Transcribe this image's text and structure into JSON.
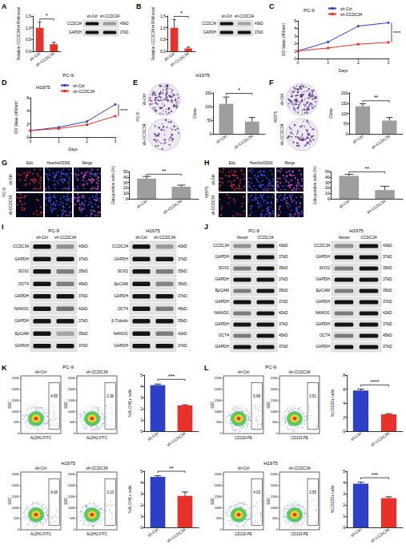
{
  "chart_data": [
    {
      "type": "bar",
      "ylabel": "Relative CCDC34 mRNA level",
      "categories": [
        "sh-Ctrl",
        "sh-CCDC34"
      ],
      "values": [
        1.0,
        0.3
      ],
      "errors": [
        0.25,
        0.08
      ],
      "colors": [
        "#e8312a",
        "#e8312a"
      ],
      "ylim": [
        0,
        1.5
      ],
      "yticks": [
        {
          "value": 0,
          "label": "0.0"
        },
        {
          "value": 0.5,
          "label": "0.5"
        },
        {
          "value": 1,
          "label": "1.0"
        },
        {
          "value": 1.5,
          "label": "1.5"
        }
      ],
      "annotation": "*"
    },
    {
      "type": "bar",
      "ylabel": "Relative CCDC34 mRNA level",
      "categories": [
        "sh-Ctrl",
        "sh-CCDC34"
      ],
      "values": [
        1.0,
        0.12
      ],
      "errors": [
        0.35,
        0.06
      ],
      "colors": [
        "#e8312a",
        "#e8312a"
      ],
      "ylim": [
        0,
        1.5
      ],
      "yticks": [
        {
          "value": 0,
          "label": "0.0"
        },
        {
          "value": 0.5,
          "label": "0.5"
        },
        {
          "value": 1,
          "label": "1.0"
        },
        {
          "value": 1.5,
          "label": "1.5"
        }
      ],
      "annotation": "*"
    },
    {
      "type": "line",
      "title": "PC-9",
      "xlabel": "Days",
      "ylabel": "OD Value (450nm)",
      "x": [
        0,
        1,
        2,
        3
      ],
      "series": [
        {
          "name": "sh-Ctrl",
          "color": "#2b3fc7",
          "marker": "circle",
          "values": [
            1.0,
            2.2,
            4.3,
            4.75
          ]
        },
        {
          "name": "sh-CCDC34",
          "color": "#e8312a",
          "marker": "square",
          "values": [
            1.0,
            1.4,
            1.9,
            2.15
          ]
        }
      ],
      "xlim": [
        0,
        3
      ],
      "xticks": [
        0,
        1,
        2,
        3
      ],
      "ylim": [
        0,
        5
      ],
      "yticks": [
        0,
        1,
        2,
        3,
        4,
        5
      ],
      "legend": "upper left",
      "annotation": "****"
    },
    {
      "type": "line",
      "title": "H1975",
      "xlabel": "Days",
      "ylabel": "OD Value (450nm)",
      "x": [
        0,
        1,
        2,
        3
      ],
      "series": [
        {
          "name": "sh-Ctrl",
          "color": "#2b3fc7",
          "marker": "circle",
          "values": [
            1.0,
            1.5,
            2.4,
            5.0
          ]
        },
        {
          "name": "sh-CCDC34",
          "color": "#e8312a",
          "marker": "square",
          "values": [
            1.0,
            1.3,
            1.9,
            3.2
          ]
        }
      ],
      "xlim": [
        0,
        3
      ],
      "xticks": [
        0,
        1,
        2,
        3
      ],
      "ylim": [
        0,
        6
      ],
      "yticks": [
        0,
        2,
        4,
        6
      ],
      "legend": "upper left",
      "annotation": "****"
    },
    {
      "type": "bar",
      "ylabel": "Clone",
      "categories": [
        "sh-Ctrl",
        "sh-CCDC34"
      ],
      "values": [
        110,
        45
      ],
      "errors": [
        25,
        15
      ],
      "colors": [
        "#9e9e9e",
        "#9e9e9e"
      ],
      "ylim": [
        0,
        150
      ],
      "yticks": [
        0,
        50,
        100,
        150
      ],
      "annotation": "*"
    },
    {
      "type": "bar",
      "ylabel": "Clone",
      "categories": [
        "sh-Ctrl",
        "sh-CCDC34"
      ],
      "values": [
        135,
        65
      ],
      "errors": [
        12,
        15
      ],
      "colors": [
        "#9e9e9e",
        "#9e9e9e"
      ],
      "ylim": [
        0,
        200
      ],
      "yticks": [
        0,
        50,
        100,
        150,
        200
      ],
      "annotation": "**"
    },
    {
      "type": "bar",
      "ylabel": "Edu-positive cells (%)",
      "categories": [
        "sh-Ctrl",
        "sh-CCDC34"
      ],
      "values": [
        37,
        22
      ],
      "errors": [
        4,
        3
      ],
      "colors": [
        "#9e9e9e",
        "#9e9e9e"
      ],
      "ylim": [
        0,
        50
      ],
      "yticks": [
        0,
        10,
        20,
        30,
        40,
        50
      ],
      "annotation": "**"
    },
    {
      "type": "bar",
      "ylabel": "Edu-positive cells (%)",
      "categories": [
        "sh-Ctrl",
        "sh-CCDC34"
      ],
      "values": [
        42,
        16
      ],
      "errors": [
        3,
        7
      ],
      "colors": [
        "#9e9e9e",
        "#9e9e9e"
      ],
      "ylim": [
        0,
        50
      ],
      "yticks": [
        0,
        10,
        20,
        30,
        40,
        50
      ],
      "annotation": "**"
    },
    {
      "type": "bar",
      "ylabel": "%ALDH1+ cells",
      "categories": [
        "sh-Ctrl",
        "sh-CCDC34"
      ],
      "values": [
        4.1,
        2.3
      ],
      "errors": [
        0.1,
        0.05
      ],
      "colors": [
        "#2b3fc7",
        "#e8312a"
      ],
      "ylim": [
        0,
        5
      ],
      "yticks": [
        0,
        1,
        2,
        3,
        4,
        5
      ],
      "annotation": "***"
    },
    {
      "type": "bar",
      "ylabel": "%ALDH1+ cells",
      "categories": [
        "sh-Ctrl",
        "sh-CCDC34"
      ],
      "values": [
        4.5,
        2.8
      ],
      "errors": [
        0.1,
        0.35
      ],
      "colors": [
        "#2b3fc7",
        "#e8312a"
      ],
      "ylim": [
        0,
        5
      ],
      "yticks": [
        0,
        1,
        2,
        3,
        4,
        5
      ],
      "annotation": "**"
    },
    {
      "type": "bar",
      "ylabel": "%CD133+ cells",
      "categories": [
        "sh-Ctrl",
        "sh-CCDC34"
      ],
      "values": [
        5.8,
        2.4
      ],
      "errors": [
        0.2,
        0.1
      ],
      "colors": [
        "#2b3fc7",
        "#e8312a"
      ],
      "ylim": [
        0,
        8
      ],
      "yticks": [
        0,
        2,
        4,
        6,
        8
      ],
      "annotation": "****"
    },
    {
      "type": "bar",
      "ylabel": "%CD133+ cells",
      "categories": [
        "sh-Ctrl",
        "sh-CCDC34"
      ],
      "values": [
        3.9,
        2.6
      ],
      "errors": [
        0.12,
        0.12
      ],
      "colors": [
        "#2b3fc7",
        "#e8312a"
      ],
      "ylim": [
        0,
        5
      ],
      "yticks": [
        0,
        1,
        2,
        3,
        4,
        5
      ],
      "annotation": "***"
    }
  ],
  "figure": {
    "letters": [
      "A",
      "B",
      "C",
      "D",
      "E",
      "F",
      "G",
      "H",
      "I",
      "J",
      "K",
      "L"
    ],
    "blots": [
      {
        "cell_line": "PC-9",
        "columns": [
          "sh-Ctrl",
          "sh-CCDC34"
        ],
        "rows": [
          {
            "protein": "CCDC34",
            "kd": "43kD",
            "bands": [
              1,
              0.35
            ]
          },
          {
            "protein": "GAPDH",
            "kd": "37kD",
            "bands": [
              1,
              1
            ]
          }
        ]
      },
      {
        "cell_line": "H1975",
        "columns": [
          "sh-Ctrl",
          "sh-CCDC34"
        ],
        "rows": [
          {
            "protein": "CCDC34",
            "kd": "43kD",
            "bands": [
              1,
              0.3
            ]
          },
          {
            "protein": "GAPDH",
            "kd": "37kD",
            "bands": [
              1,
              1
            ]
          }
        ]
      },
      {
        "cell_line": "PC-9",
        "columns": [
          "sh-Ctrl",
          "sh-CCDC34"
        ],
        "rows": [
          {
            "protein": "CCDC34",
            "kd": "43kD",
            "bands": [
              1,
              0.4
            ]
          },
          {
            "protein": "GAPDH",
            "kd": "37kD",
            "bands": [
              1,
              1
            ]
          },
          {
            "protein": "SOX2",
            "kd": "35kD",
            "bands": [
              1,
              0.5
            ]
          },
          {
            "protein": "OCT4",
            "kd": "45kD",
            "bands": [
              1,
              0.5
            ]
          },
          {
            "protein": "GAPDH",
            "kd": "37kD",
            "bands": [
              1,
              1
            ]
          },
          {
            "protein": "NANOG",
            "kd": "42kD",
            "bands": [
              1,
              0.55
            ]
          },
          {
            "protein": "GAPDH",
            "kd": "37kD",
            "bands": [
              1,
              1
            ]
          },
          {
            "protein": "EpCAM",
            "kd": "35kD",
            "bands": [
              1,
              0.3
            ]
          },
          {
            "protein": "GAPDH",
            "kd": "37kD",
            "bands": [
              1,
              1
            ]
          }
        ]
      },
      {
        "cell_line": "H1975",
        "columns": [
          "sh-Ctrl",
          "sh-CCDC34"
        ],
        "rows": [
          {
            "protein": "CCDC34",
            "kd": "43kD",
            "bands": [
              1,
              0.35
            ]
          },
          {
            "protein": "GAPDH",
            "kd": "37kD",
            "bands": [
              1,
              1
            ]
          },
          {
            "protein": "SOX2",
            "kd": "35kD",
            "bands": [
              1,
              0.5
            ]
          },
          {
            "protein": "EpCAM",
            "kd": "35kD",
            "bands": [
              1,
              0.45
            ]
          },
          {
            "protein": "GAPDH",
            "kd": "37kD",
            "bands": [
              1,
              1
            ]
          },
          {
            "protein": "OCT4",
            "kd": "45kD",
            "bands": [
              1,
              0.5
            ]
          },
          {
            "protein": "β-Tubulin",
            "kd": "55kD",
            "bands": [
              1,
              1
            ]
          },
          {
            "protein": "NANOG",
            "kd": "42kD",
            "bands": [
              1,
              0.5
            ]
          },
          {
            "protein": "GAPDH",
            "kd": "37kD",
            "bands": [
              1,
              1
            ]
          }
        ]
      },
      {
        "cell_line": "PC-9",
        "columns": [
          "Vector",
          "CCDC34"
        ],
        "rows": [
          {
            "protein": "CCDC34",
            "kd": "43kD",
            "bands": [
              0.4,
              1
            ]
          },
          {
            "protein": "GAPDH",
            "kd": "37kD",
            "bands": [
              1,
              1
            ]
          },
          {
            "protein": "SOX2",
            "kd": "35kD",
            "bands": [
              0.5,
              1
            ]
          },
          {
            "protein": "GAPDH",
            "kd": "37kD",
            "bands": [
              1,
              1
            ]
          },
          {
            "protein": "EpCAM",
            "kd": "35kD",
            "bands": [
              0.5,
              1
            ]
          },
          {
            "protein": "GAPDH",
            "kd": "37kD",
            "bands": [
              1,
              1
            ]
          },
          {
            "protein": "NANOG",
            "kd": "42kD",
            "bands": [
              0.5,
              1
            ]
          },
          {
            "protein": "GAPDH",
            "kd": "37kD",
            "bands": [
              1,
              1
            ]
          },
          {
            "protein": "OCT4",
            "kd": "45kD",
            "bands": [
              0.5,
              1
            ]
          },
          {
            "protein": "GAPDH",
            "kd": "37kD",
            "bands": [
              1,
              1
            ]
          }
        ]
      },
      {
        "cell_line": "H1975",
        "columns": [
          "Vector",
          "CCDC34"
        ],
        "rows": [
          {
            "protein": "CCDC34",
            "kd": "43kD",
            "bands": [
              0.4,
              1
            ]
          },
          {
            "protein": "GAPDH",
            "kd": "37kD",
            "bands": [
              1,
              1
            ]
          },
          {
            "protein": "SOX2",
            "kd": "35kD",
            "bands": [
              0.5,
              1
            ]
          },
          {
            "protein": "GAPDH",
            "kd": "37kD",
            "bands": [
              1,
              1
            ]
          },
          {
            "protein": "EpCAM",
            "kd": "35kD",
            "bands": [
              0.5,
              1
            ]
          },
          {
            "protein": "GAPDH",
            "kd": "37kD",
            "bands": [
              1,
              1
            ]
          },
          {
            "protein": "NANOG",
            "kd": "42kD",
            "bands": [
              0.5,
              1
            ]
          },
          {
            "protein": "GAPDH",
            "kd": "37kD",
            "bands": [
              1,
              1
            ]
          },
          {
            "protein": "OCT4",
            "kd": "45kD",
            "bands": [
              0.5,
              1
            ]
          },
          {
            "protein": "GAPDH",
            "kd": "37kD",
            "bands": [
              1,
              1
            ]
          }
        ]
      }
    ],
    "colonies": [
      {
        "cell_line": "PC-9",
        "rows": [
          "sh-Ctrl",
          "sh-CCDC34"
        ]
      },
      {
        "cell_line": "H1975",
        "rows": [
          "sh-Ctrl",
          "sh-CCDC34"
        ]
      }
    ],
    "edu": [
      {
        "cell_line": "PC-9",
        "columns": [
          "Edu",
          "Hoechst33342",
          "Merge"
        ],
        "rows": [
          "sh-Ctrl",
          "sh-CCDC34"
        ]
      },
      {
        "cell_line": "H1975",
        "columns": [
          "Edu",
          "Hoechst33342",
          "Merge"
        ],
        "rows": [
          "sh-Ctrl",
          "sh-CCDC34"
        ]
      }
    ],
    "flow": [
      {
        "cell_line": "PC-9",
        "xlabel": "ALDH1-FITC",
        "ylabel": "SSC",
        "ylim": [
          0,
          262144
        ],
        "yticks": [
          0,
          {
            "value": 50000,
            "label": "50K"
          },
          {
            "value": 100000,
            "label": "100K"
          },
          {
            "value": 150000,
            "label": "150K"
          },
          {
            "value": 200000,
            "label": "200K"
          },
          {
            "value": 250000,
            "label": "250K"
          }
        ],
        "plots": [
          {
            "title": "sh-Ctrl",
            "percent": 4.55
          },
          {
            "title": "sh-CCDC34",
            "percent": 2.36
          }
        ]
      },
      {
        "cell_line": "H1975",
        "xlabel": "ALDH1-FITC",
        "ylabel": "SSC",
        "ylim": [
          0,
          262144
        ],
        "yticks": [
          0,
          {
            "value": 50000,
            "label": "50K"
          },
          {
            "value": 100000,
            "label": "100K"
          },
          {
            "value": 150000,
            "label": "150K"
          },
          {
            "value": 200000,
            "label": "200K"
          },
          {
            "value": 250000,
            "label": "250K"
          }
        ],
        "plots": [
          {
            "title": "sh-Ctrl",
            "percent": 4.06
          },
          {
            "title": "sh-CCDC34",
            "percent": 3.23
          }
        ]
      },
      {
        "cell_line": "PC-9",
        "xlabel": "CD133-PE",
        "ylabel": "SSC",
        "ylim": [
          0,
          262144
        ],
        "yticks": [
          0,
          {
            "value": 50000,
            "label": "50K"
          },
          {
            "value": 100000,
            "label": "100K"
          },
          {
            "value": 150000,
            "label": "150K"
          },
          {
            "value": 200000,
            "label": "200K"
          },
          {
            "value": 250000,
            "label": "250K"
          }
        ],
        "plots": [
          {
            "title": "sh-Ctrl",
            "percent": 5.69
          },
          {
            "title": "sh-CCDC34",
            "percent": 2.51
          }
        ]
      },
      {
        "cell_line": "H1975",
        "xlabel": "CD133-PE",
        "ylabel": "SSC",
        "ylim": [
          0,
          262144
        ],
        "yticks": [
          0,
          {
            "value": 50000,
            "label": "50K"
          },
          {
            "value": 100000,
            "label": "100K"
          },
          {
            "value": 150000,
            "label": "150K"
          },
          {
            "value": 200000,
            "label": "200K"
          },
          {
            "value": 250000,
            "label": "250K"
          }
        ],
        "plots": [
          {
            "title": "sh-Ctrl",
            "percent": 4.03
          },
          {
            "title": "sh-CCDC34",
            "percent": 2.55
          }
        ]
      }
    ]
  }
}
